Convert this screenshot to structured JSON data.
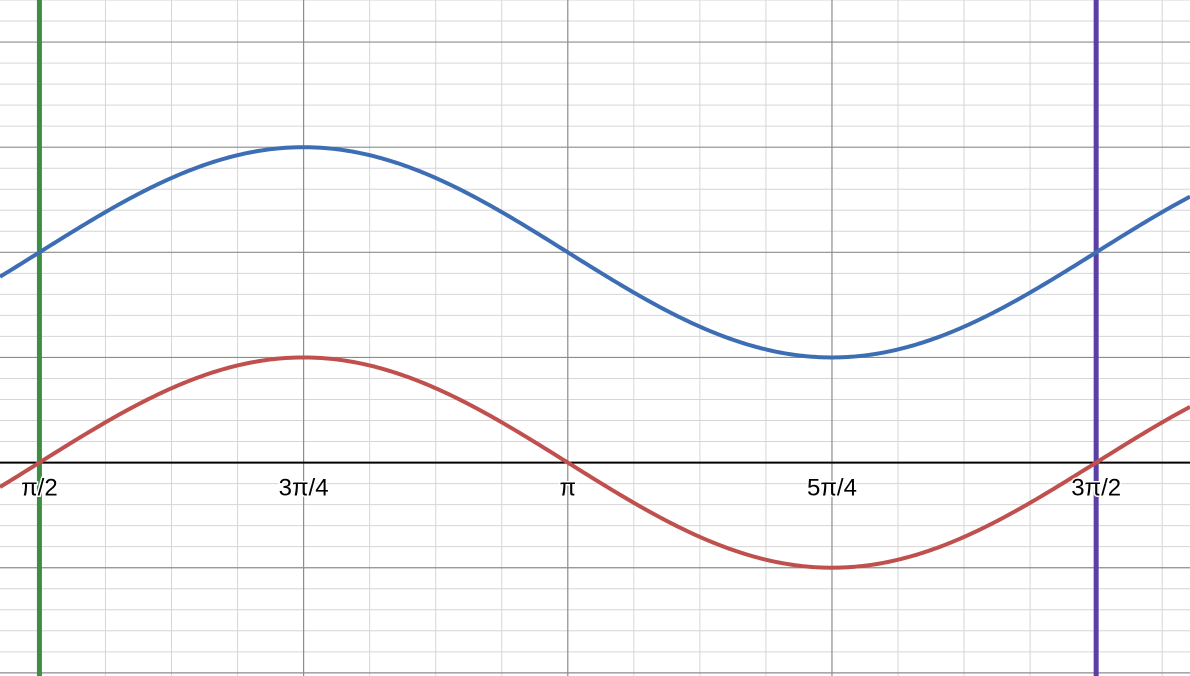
{
  "chart_data": {
    "type": "line",
    "title": "",
    "xlabel": "",
    "ylabel": "",
    "xlim": [
      1.4536,
      4.9914
    ],
    "ylim": [
      -2.03,
      4.4
    ],
    "grid": true,
    "x_tick_labels": [
      {
        "x": 1.5708,
        "label": "π/2"
      },
      {
        "x": 2.3562,
        "label": "3π/4"
      },
      {
        "x": 3.1416,
        "label": "π"
      },
      {
        "x": 3.927,
        "label": "5π/4"
      },
      {
        "x": 4.7124,
        "label": "3π/2"
      }
    ],
    "series": [
      {
        "color": "#3d6eb4",
        "formula": "2 + sin(2x + π)",
        "x_range": [
          1.4536,
          4.9914
        ]
      },
      {
        "color": "#c0504d",
        "formula": "sin(2x + π)",
        "x_range": [
          1.4536,
          4.9914
        ]
      }
    ],
    "vertical_lines": [
      {
        "x": 1.5708,
        "color": "#3e8e41"
      },
      {
        "x": 4.7124,
        "color": "#5b3ea6"
      }
    ]
  }
}
